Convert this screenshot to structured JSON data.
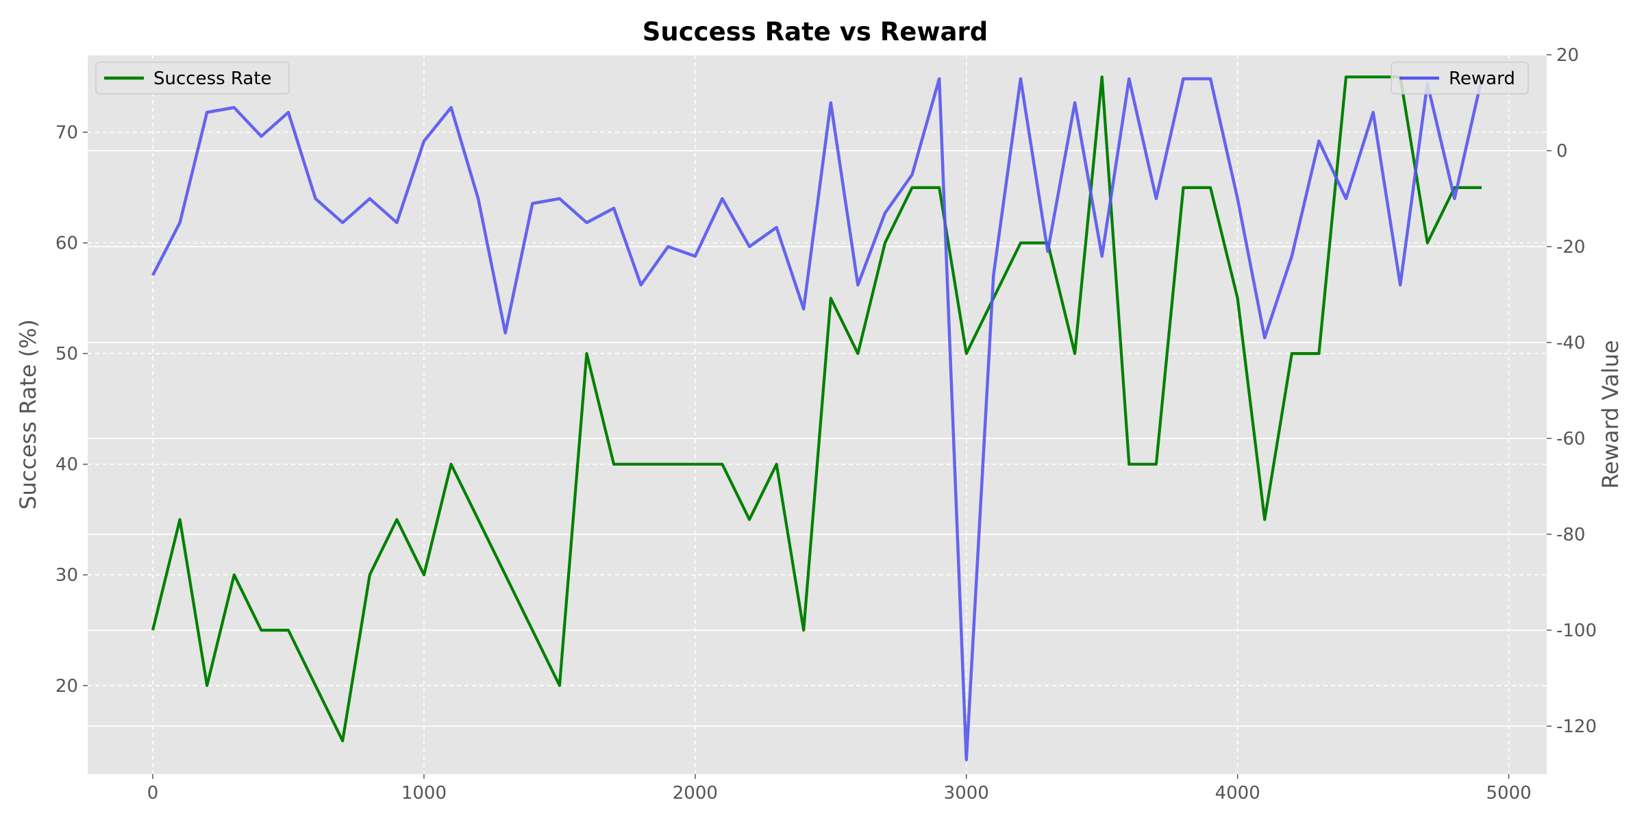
{
  "chart_data": {
    "type": "line",
    "title": "Success Rate vs Reward",
    "xlabel": "",
    "ylabel": "Success Rate (%)",
    "ylabel_right": "Reward Value",
    "xlim": [
      -240,
      5140
    ],
    "ylim": [
      12,
      77
    ],
    "ylim_right": [
      -130,
      20
    ],
    "x_ticks": [
      0,
      1000,
      2000,
      3000,
      4000,
      5000
    ],
    "y_ticks": [
      20,
      30,
      40,
      50,
      60,
      70
    ],
    "y_right_ticks": [
      -120,
      -100,
      -80,
      -60,
      -40,
      -20,
      0,
      20
    ],
    "grid": true,
    "x": [
      0,
      100,
      200,
      300,
      400,
      500,
      600,
      700,
      800,
      900,
      1000,
      1100,
      1200,
      1300,
      1400,
      1500,
      1600,
      1700,
      1800,
      1900,
      2000,
      2100,
      2200,
      2300,
      2400,
      2500,
      2600,
      2700,
      2800,
      2900,
      3000,
      3100,
      3200,
      3300,
      3400,
      3500,
      3600,
      3700,
      3800,
      3900,
      4000,
      4100,
      4200,
      4300,
      4400,
      4500,
      4600,
      4700,
      4800,
      4900
    ],
    "series": [
      {
        "name": "Success Rate",
        "axis": "left",
        "color": "#008000",
        "legend_position": "top-left",
        "values": [
          25,
          35,
          20,
          30,
          25,
          25,
          20,
          15,
          30,
          35,
          30,
          40,
          35,
          30,
          25,
          20,
          50,
          40,
          40,
          40,
          40,
          40,
          35,
          40,
          25,
          55,
          50,
          60,
          65,
          65,
          50,
          55,
          60,
          60,
          50,
          75,
          40,
          40,
          65,
          65,
          55,
          35,
          50,
          50,
          75,
          75,
          75,
          60,
          65,
          65
        ]
      },
      {
        "name": "Reward",
        "axis": "right",
        "color": "#5555ee",
        "legend_position": "top-right",
        "values": [
          -26,
          -15,
          8,
          9,
          3,
          8,
          -10,
          -15,
          -10,
          -15,
          2,
          9,
          -10,
          -38,
          -11,
          -10,
          -15,
          -12,
          -28,
          -20,
          -22,
          -10,
          -20,
          -16,
          -33,
          10,
          -28,
          -13,
          -5,
          15,
          -127,
          -26,
          15,
          -21,
          10,
          -22,
          15,
          -10,
          15,
          15,
          -10,
          -39,
          -22,
          2,
          -10,
          8,
          -28,
          14,
          -10,
          15
        ]
      }
    ]
  }
}
